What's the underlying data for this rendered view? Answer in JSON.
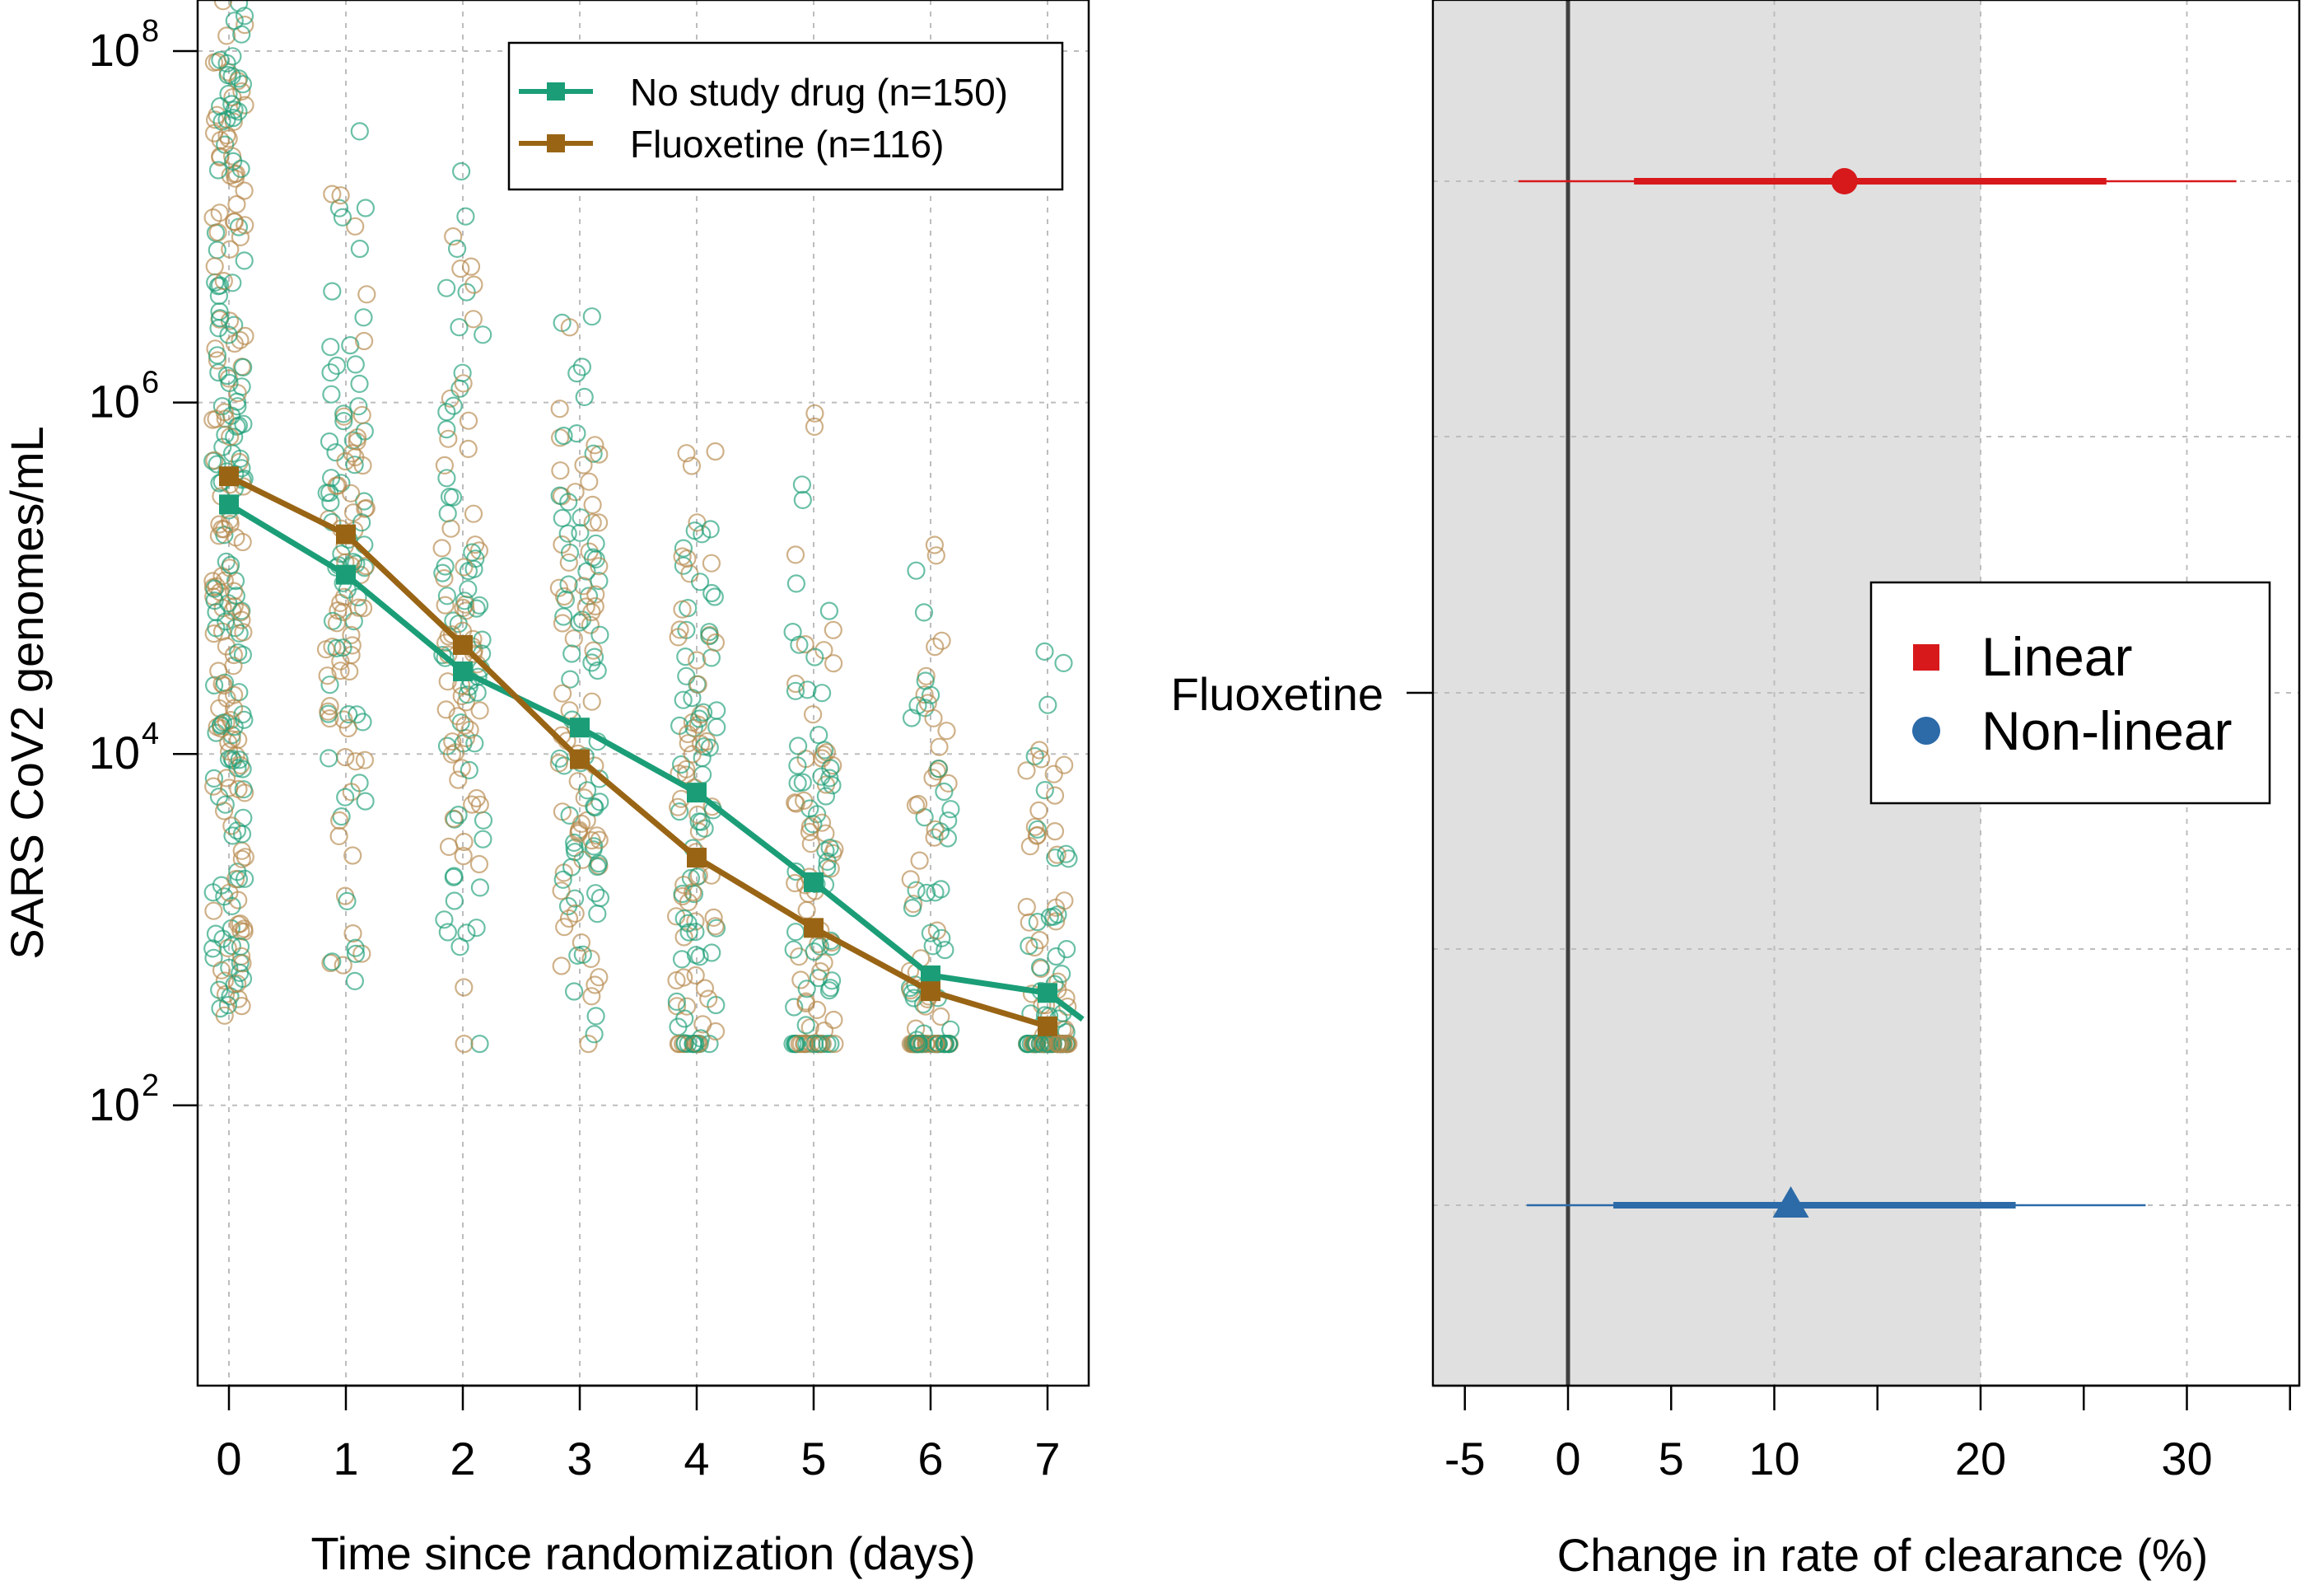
{
  "chart_data": [
    {
      "type": "scatter",
      "title": "",
      "xlabel": "Time since randomization (days)",
      "ylabel": "SARS CoV2 genomes/mL",
      "y_scale": "log10",
      "xlim": [
        -0.3,
        7.3
      ],
      "ylim": [
        2.3,
        8.4
      ],
      "grid": true,
      "x_ticks": [
        "0",
        "1",
        "2",
        "3",
        "4",
        "5",
        "6",
        "7"
      ],
      "y_ticks": [
        {
          "base": "10",
          "exp": "2",
          "value": 2
        },
        {
          "base": "10",
          "exp": "4",
          "value": 4
        },
        {
          "base": "10",
          "exp": "6",
          "value": 6
        },
        {
          "base": "10",
          "exp": "8",
          "value": 8
        }
      ],
      "legend_position": "top-right",
      "series": [
        {
          "name": "No study drug (n=150)",
          "color": "#1b9e77",
          "marker": "square",
          "x": [
            0,
            1,
            2,
            3,
            4,
            5,
            6,
            7,
            7.3
          ],
          "log10_y": [
            5.42,
            5.02,
            4.47,
            4.15,
            3.78,
            3.27,
            2.74,
            2.64,
            2.49
          ]
        },
        {
          "name": "Fluoxetine (n=116)",
          "color": "#996515",
          "marker": "square",
          "x": [
            0,
            1,
            2,
            3,
            4,
            5,
            6,
            7
          ],
          "log10_y": [
            5.58,
            5.25,
            4.62,
            3.97,
            3.41,
            3.01,
            2.65,
            2.45
          ]
        }
      ],
      "points_description_color_no_drug": "#1b9e77",
      "points_color_fluoxetine": "#b5874a"
    },
    {
      "type": "forest",
      "title": "",
      "xlabel": "Change in rate of clearance (%)",
      "xlim": [
        -7,
        35
      ],
      "x_ticks": [
        "-5",
        "0",
        "5",
        "10",
        "20",
        "30"
      ],
      "shaded_region": [
        -7,
        20
      ],
      "reference_line": 0,
      "row_label": "Fluoxetine",
      "legend_position": "right",
      "series": [
        {
          "name": "Linear",
          "color": "#d7191c",
          "marker": "circle",
          "legend_marker": "square",
          "estimate": 13.4,
          "ci80": [
            3.2,
            26.1
          ],
          "ci95": [
            -2.4,
            32.4
          ]
        },
        {
          "name": "Non-linear",
          "color": "#2c6aa8",
          "marker": "triangle",
          "legend_marker": "circle",
          "estimate": 10.8,
          "ci80": [
            2.2,
            21.7
          ],
          "ci95": [
            -2.0,
            28.0
          ]
        }
      ]
    }
  ]
}
